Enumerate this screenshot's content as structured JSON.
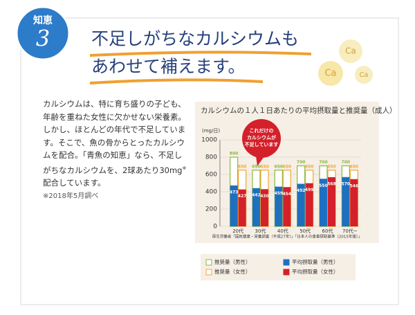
{
  "badge": {
    "label": "知恵",
    "number": "3"
  },
  "header": {
    "title_lines": [
      "不足しがちなカルシウムも",
      "あわせて補えます。"
    ],
    "bubbles": [
      "Ca",
      "Ca",
      "Ca"
    ]
  },
  "body": {
    "text": [
      "カルシウムは、特に育ち盛りの子ども、年齢を重ねた女性に欠かせない栄養素。",
      "しかし、ほとんどの年代で不足しています。",
      "そこで、魚の骨からとったカルシウムを配合。「青魚の知恵」なら、不足しがちなカルシウムを、2球あたり30mg",
      "※",
      "配合しています。"
    ],
    "note": "※2018年5月調べ"
  },
  "chart_data": {
    "type": "bar",
    "title": "カルシウムの１人１日あたりの平均摂取量と推奨量（成人）",
    "y_label": "(mg/日)",
    "categories": [
      "20代",
      "30代",
      "40代",
      "50代",
      "60代",
      "70代~"
    ],
    "series": [
      {
        "name": "推奨量（男性）",
        "color": "#8ab83c",
        "filled": false,
        "values": [
          800,
          650,
          650,
          700,
          700,
          700
        ]
      },
      {
        "name": "推奨量（女性）",
        "color": "#f0a830",
        "filled": false,
        "values": [
          650,
          650,
          650,
          650,
          650,
          650
        ]
      },
      {
        "name": "平均摂取量（男性）",
        "color": "#1f6fc1",
        "filled": true,
        "values": [
          473,
          442,
          459,
          492,
          550,
          570
        ]
      },
      {
        "name": "平均摂取量（女性）",
        "color": "#d4202a",
        "filled": true,
        "values": [
          427,
          430,
          454,
          499,
          568,
          546
        ]
      }
    ],
    "ylim": [
      0,
      1000
    ],
    "yticks": [
      0,
      200,
      400,
      600,
      800,
      1000
    ],
    "grid": true,
    "annotation": [
      "これだけの",
      "カルシウムが",
      "不足しています"
    ],
    "source": "厚生労働省「国民健康・栄養調査（平成27年）」「日本人の食事摂取基準（2015年版）」"
  }
}
